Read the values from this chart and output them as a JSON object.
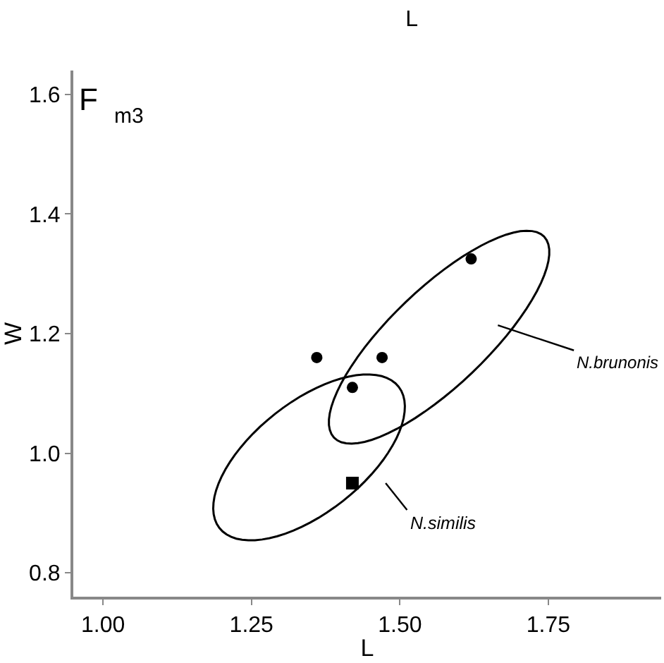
{
  "chart_data": {
    "type": "scatter",
    "title": "L",
    "xlabel": "L",
    "ylabel": "W",
    "annotations": [
      "F",
      "m3",
      "N.brunonis",
      "N.similis"
    ],
    "xlim": [
      0.95,
      1.94
    ],
    "ylim": [
      0.76,
      1.64
    ],
    "xticks": [
      {
        "value": 1.0,
        "label": "1.00"
      },
      1.25,
      {
        "value": 1.5,
        "label": "1.50"
      },
      1.75
    ],
    "yticks": [
      0.8,
      {
        "value": 1.0,
        "label": "1.0"
      },
      1.2,
      1.4,
      1.6
    ],
    "series": [
      {
        "marker": "circle",
        "color": "#000000",
        "x": [
          1.62,
          1.36,
          1.47,
          1.42
        ],
        "values": [
          1.325,
          1.16,
          1.16,
          1.11
        ]
      },
      {
        "marker": "square",
        "color": "#000000",
        "x": [
          1.42
        ],
        "values": [
          0.95
        ]
      }
    ]
  }
}
